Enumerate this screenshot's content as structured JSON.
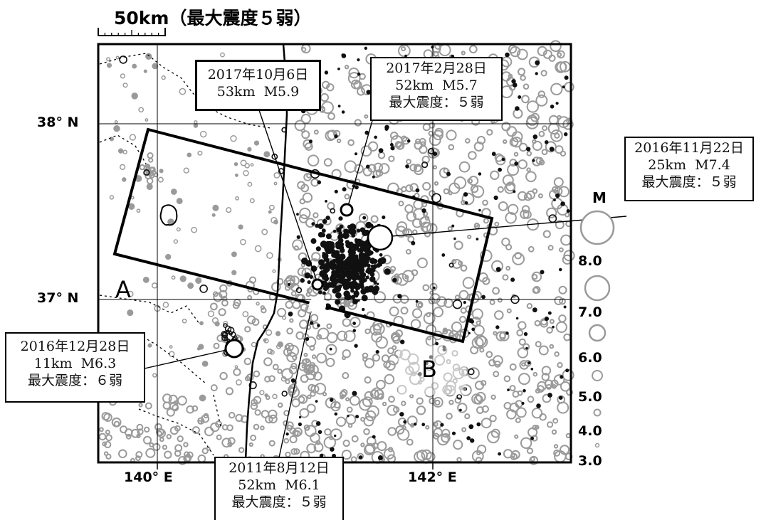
{
  "header": {
    "scale_label": "50km",
    "title": "（最大震度５弱）"
  },
  "map": {
    "lat_labels": [
      "38° N",
      "37° N"
    ],
    "lon_labels": [
      "140° E",
      "142° E"
    ],
    "section_labels": [
      "A",
      "B"
    ],
    "colors": {
      "background": "#ffffff",
      "grey_epicenter": "#9a9a9a",
      "black_epicenter": "#111111",
      "section_box": "#000000"
    }
  },
  "events": [
    {
      "date": "2017年10月6日",
      "depth": "53km",
      "mag": "M5.9",
      "intensity": ""
    },
    {
      "date": "2017年2月28日",
      "depth": "52km",
      "mag": "M5.7",
      "intensity": "最大震度：５弱"
    },
    {
      "date": "2016年11月22日",
      "depth": "25km",
      "mag": "M7.4",
      "intensity": "最大震度：５弱"
    },
    {
      "date": "2016年12月28日",
      "depth": "11km",
      "mag": "M6.3",
      "intensity": "最大震度：６弱"
    },
    {
      "date": "2011年8月12日",
      "depth": "52km",
      "mag": "M6.1",
      "intensity": "最大震度：５弱"
    }
  ],
  "legend": {
    "title": "M",
    "values": [
      "8.0",
      "7.0",
      "6.0",
      "5.0",
      "4.0",
      "3.0"
    ]
  }
}
